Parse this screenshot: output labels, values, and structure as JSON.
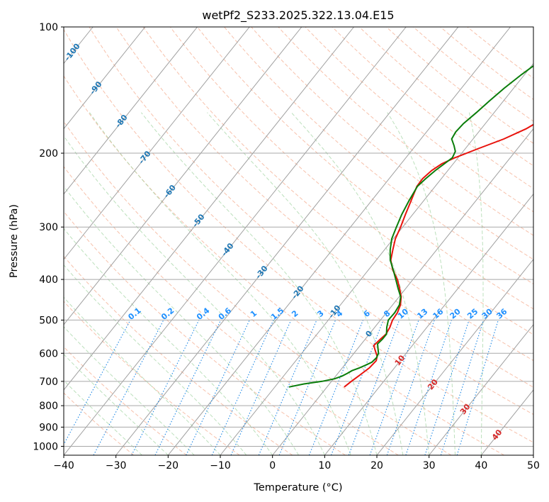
{
  "chart_data": {
    "type": "line",
    "chart_kind": "skew-T log-P diagram",
    "title": "wetPf2_S233.2025.322.13.04.E15",
    "xlabel": "Temperature (°C)",
    "ylabel": "Pressure (hPa)",
    "xlim": [
      -40,
      50
    ],
    "ylim": [
      1050,
      100
    ],
    "x_ticks": [
      -40,
      -30,
      -20,
      -10,
      0,
      10,
      20,
      30,
      40,
      50
    ],
    "x_tick_labels": [
      "−40",
      "−30",
      "−20",
      "−10",
      "0",
      "10",
      "20",
      "30",
      "40",
      "50"
    ],
    "y_ticks": [
      100,
      200,
      300,
      400,
      500,
      600,
      700,
      800,
      900,
      1000
    ],
    "y_tick_labels": [
      "100",
      "200",
      "300",
      "400",
      "500",
      "600",
      "700",
      "800",
      "900",
      "1000"
    ],
    "grid": true,
    "isotherm_labels": [
      "-100",
      "-90",
      "-80",
      "-70",
      "-60",
      "-50",
      "-40",
      "-30",
      "-20",
      "-10",
      "0",
      "10",
      "20",
      "30",
      "40"
    ],
    "mixing_ratio_labels": [
      "0.1",
      "0.2",
      "0.4",
      "0.6",
      "1",
      "1.5",
      "2",
      "3",
      "4",
      "6",
      "8",
      "10",
      "13",
      "16",
      "20",
      "25",
      "30",
      "36"
    ],
    "series": [
      {
        "name": "Temperature",
        "color": "#e8120c",
        "pressure": [
          722,
          700,
          675,
          650,
          625,
          610,
          590,
          575,
          555,
          540,
          520,
          500,
          480,
          460,
          440,
          420,
          400,
          380,
          360,
          340,
          320,
          300,
          280,
          260,
          240,
          230,
          220,
          212,
          205,
          195,
          185,
          175,
          165,
          155,
          145,
          135,
          125,
          115,
          105,
          100
        ],
        "values": [
          3.3,
          3.8,
          4.5,
          5.2,
          5.4,
          4.9,
          3.6,
          2.6,
          2.9,
          3.2,
          2.9,
          2.3,
          2.1,
          1.5,
          0.4,
          -1.2,
          -3.0,
          -5.3,
          -7.2,
          -8.4,
          -9.6,
          -10.4,
          -11.4,
          -12.4,
          -13.5,
          -13.6,
          -13.1,
          -12.2,
          -10.6,
          -7.5,
          -4.1,
          -1.4,
          0.5,
          2.1,
          4.1,
          6.8,
          9.8,
          13.3,
          17.1,
          19.1
        ]
      },
      {
        "name": "Dewpoint",
        "color": "#0a7d0a",
        "pressure": [
          722,
          710,
          700,
          690,
          680,
          670,
          660,
          650,
          640,
          630,
          615,
          600,
          585,
          570,
          555,
          540,
          520,
          500,
          480,
          460,
          440,
          420,
          400,
          380,
          360,
          340,
          320,
          300,
          280,
          260,
          240,
          230,
          220,
          212,
          205,
          198,
          192,
          185,
          178,
          170,
          160,
          150,
          140,
          130,
          120,
          110,
          100
        ],
        "values": [
          -7.3,
          -4.9,
          -1.8,
          0.2,
          1.2,
          1.8,
          2.3,
          3.3,
          4.1,
          4.8,
          5.0,
          4.7,
          3.9,
          3.1,
          3.3,
          3.3,
          2.3,
          1.5,
          1.6,
          1.3,
          0.3,
          -1.5,
          -3.3,
          -5.2,
          -7.3,
          -8.9,
          -10.3,
          -11.2,
          -12.1,
          -12.8,
          -13.4,
          -13.0,
          -12.4,
          -11.7,
          -11.1,
          -11.5,
          -12.6,
          -14.1,
          -14.4,
          -14.2,
          -13.4,
          -12.7,
          -11.8,
          -10.6,
          -9.0,
          -7.6,
          -5.9
        ]
      }
    ]
  }
}
